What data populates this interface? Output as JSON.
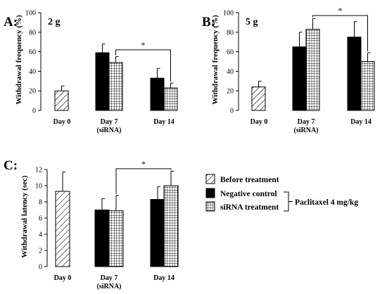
{
  "legend": {
    "items": [
      {
        "label": "Before treatment",
        "pattern": "diagonal"
      },
      {
        "label": "Negative control",
        "pattern": "solid"
      },
      {
        "label": "siRNA treatment",
        "pattern": "grid"
      }
    ],
    "bracket_label": "Paclitaxel 4 mg/kg"
  },
  "colors": {
    "solid_fill": "#000000",
    "background": "#ffffff",
    "stroke": "#000000"
  },
  "chart_data": [
    {
      "panel": "A:",
      "condition": "2 g",
      "type": "bar",
      "ylabel": "Withdrawal frequency (%)",
      "ylim": [
        0,
        100
      ],
      "yticks": [
        0,
        20,
        40,
        60,
        80,
        100
      ],
      "categories": [
        {
          "label": "Day 0",
          "sublabel": ""
        },
        {
          "label": "Day 7",
          "sublabel": "(siRNA)"
        },
        {
          "label": "Day 14",
          "sublabel": ""
        }
      ],
      "bars": [
        {
          "category": 0,
          "series": "Before treatment",
          "pattern": "diagonal",
          "value": 20,
          "error": 5
        },
        {
          "category": 1,
          "series": "Negative control",
          "pattern": "solid",
          "value": 59,
          "error": 9
        },
        {
          "category": 1,
          "series": "siRNA treatment",
          "pattern": "grid",
          "value": 49,
          "error": 6
        },
        {
          "category": 2,
          "series": "Negative control",
          "pattern": "solid",
          "value": 33,
          "error": 10
        },
        {
          "category": 2,
          "series": "siRNA treatment",
          "pattern": "grid",
          "value": 23,
          "error": 5
        }
      ],
      "significance": {
        "from_bar": 2,
        "to_bar": 4,
        "level": 62,
        "label": "*"
      }
    },
    {
      "panel": "B:",
      "condition": "5 g",
      "type": "bar",
      "ylabel": "Withdrawal frequency (%)",
      "ylim": [
        0,
        100
      ],
      "yticks": [
        0,
        20,
        40,
        60,
        80,
        100
      ],
      "categories": [
        {
          "label": "Day 0",
          "sublabel": ""
        },
        {
          "label": "Day 7",
          "sublabel": "(siRNA)"
        },
        {
          "label": "Day 14",
          "sublabel": ""
        }
      ],
      "bars": [
        {
          "category": 0,
          "series": "Before treatment",
          "pattern": "diagonal",
          "value": 24,
          "error": 6
        },
        {
          "category": 1,
          "series": "Negative control",
          "pattern": "solid",
          "value": 65,
          "error": 15
        },
        {
          "category": 1,
          "series": "siRNA treatment",
          "pattern": "grid",
          "value": 83,
          "error": 11
        },
        {
          "category": 2,
          "series": "Negative control",
          "pattern": "solid",
          "value": 75,
          "error": 16
        },
        {
          "category": 2,
          "series": "siRNA treatment",
          "pattern": "grid",
          "value": 50,
          "error": 9
        }
      ],
      "significance": {
        "from_bar": 2,
        "to_bar": 4,
        "level": 97,
        "label": "*"
      }
    },
    {
      "panel": "C:",
      "condition": "",
      "type": "bar",
      "ylabel": "Withdrawal latency (sec)",
      "ylim": [
        0,
        12
      ],
      "yticks": [
        0,
        2,
        4,
        6,
        8,
        10,
        12
      ],
      "categories": [
        {
          "label": "Day 0",
          "sublabel": ""
        },
        {
          "label": "Day 7",
          "sublabel": "(siRNA)"
        },
        {
          "label": "Day 14",
          "sublabel": ""
        }
      ],
      "bars": [
        {
          "category": 0,
          "series": "Before treatment",
          "pattern": "diagonal",
          "value": 9.3,
          "error": 2.4
        },
        {
          "category": 1,
          "series": "Negative control",
          "pattern": "solid",
          "value": 7.0,
          "error": 1.4
        },
        {
          "category": 1,
          "series": "siRNA treatment",
          "pattern": "grid",
          "value": 6.9,
          "error": 1.9
        },
        {
          "category": 2,
          "series": "Negative control",
          "pattern": "solid",
          "value": 8.3,
          "error": 1.6
        },
        {
          "category": 2,
          "series": "siRNA treatment",
          "pattern": "grid",
          "value": 10.0,
          "error": 1.8
        }
      ],
      "significance": {
        "from_bar": 2,
        "to_bar": 4,
        "level": 12.1,
        "label": "*"
      }
    }
  ]
}
